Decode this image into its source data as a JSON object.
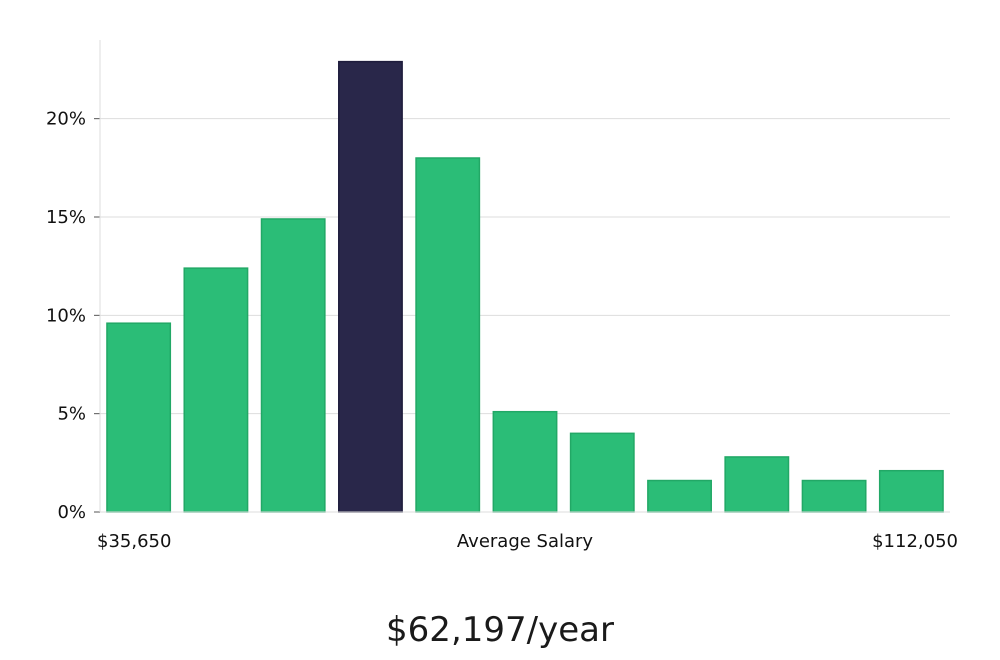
{
  "chart_data": {
    "type": "bar",
    "categories": [
      "$35,650",
      "",
      "",
      "",
      "",
      "Average Salary",
      "",
      "",
      "",
      "",
      "$112,050"
    ],
    "values": [
      9.6,
      12.4,
      14.9,
      22.9,
      18.0,
      5.1,
      4.0,
      1.6,
      2.8,
      1.6,
      2.1
    ],
    "highlight_index": 3,
    "ylim": [
      0,
      24
    ],
    "y_ticks": [
      0,
      5,
      10,
      15,
      20
    ],
    "y_tick_labels": [
      "0%",
      "5%",
      "10%",
      "15%",
      "20%"
    ],
    "x_labels": {
      "left": "$35,650",
      "center": "Average Salary",
      "right": "$112,050"
    },
    "grid": true,
    "colors": {
      "bar": "#2bbd77",
      "bar_highlight": "#29274a",
      "grid": "#dddddd"
    }
  },
  "summary": {
    "average_value": "$62,197/year"
  }
}
